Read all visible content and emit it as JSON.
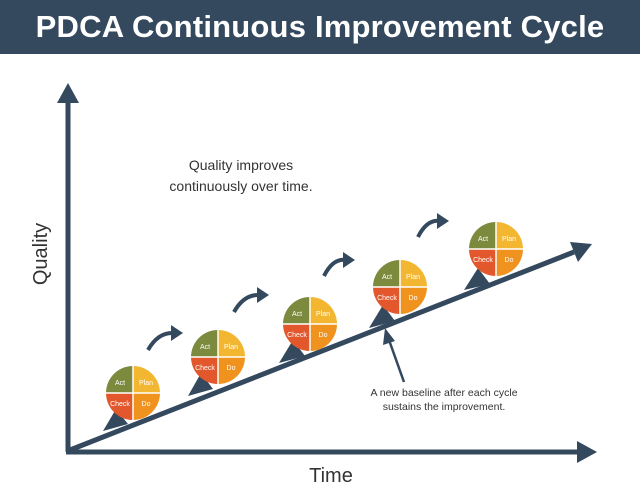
{
  "title": "PDCA Continuous Improvement Cycle",
  "axes": {
    "y_label": "Quality",
    "x_label": "Time"
  },
  "annotation_top": {
    "line1": "Quality improves",
    "line2": "continuously over time."
  },
  "annotation_baseline": {
    "line1": "A new baseline after each cycle",
    "line2": "sustains the improvement."
  },
  "quadrant_labels": {
    "act": "Act",
    "plan": "Plan",
    "check": "Check",
    "do": "Do"
  },
  "cycle_count": 5,
  "colors": {
    "header_bg": "#34495e",
    "axis": "#34495e",
    "act": "#7c8a3e",
    "plan": "#f2b630",
    "check": "#e2582c",
    "do": "#f0921e",
    "text_dark": "#333333"
  }
}
